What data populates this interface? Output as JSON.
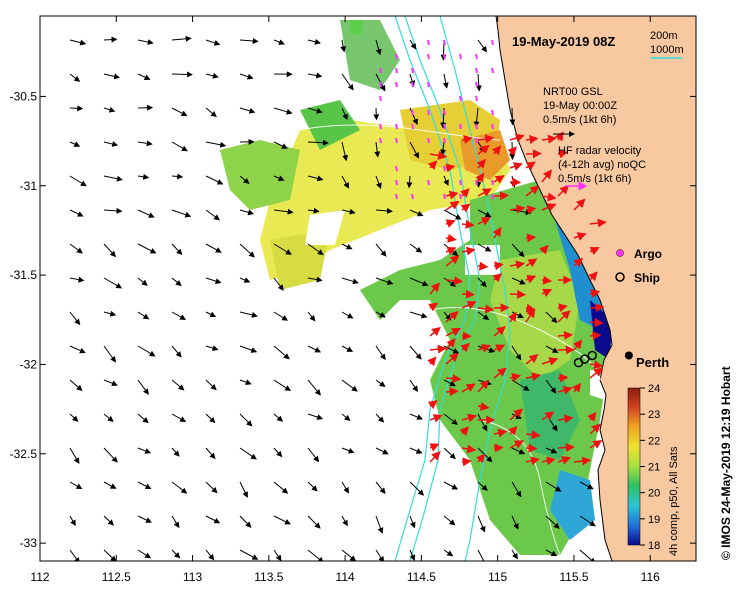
{
  "title": "19-May-2019 08Z",
  "scale_bar": {
    "label_small": "200m",
    "label_large": "1000m"
  },
  "model_label": [
    "NRT00 GSL",
    "19-May 00:00Z",
    "0.5m/s (1kt 6h)"
  ],
  "hf_label": [
    "HF radar velocity",
    "(4-12h avg) noQC",
    "0.5m/s (1kt 6h)"
  ],
  "legend": {
    "argo": "Argo",
    "ship": "Ship"
  },
  "city": {
    "name": "Perth",
    "lon": 115.86,
    "lat": -31.95
  },
  "colorbar": {
    "ticks": [
      "24",
      "23",
      "22",
      "21",
      "20",
      "19",
      "18"
    ],
    "caption": "4h comp, p50, All Sats"
  },
  "credit": "© IMOS 24-May-2019 12:19 Hobart",
  "axes": {
    "x_ticks": [
      "112",
      "112.5",
      "113",
      "113.5",
      "114",
      "114.5",
      "115",
      "115.5",
      "116"
    ],
    "y_ticks": [
      "-30.5",
      "-31",
      "-31.5",
      "-32",
      "-32.5",
      "-33"
    ],
    "x_range": [
      112,
      116.3
    ],
    "y_range": [
      -33.1,
      -30.05
    ]
  },
  "colors": {
    "land": "#f8c8a0",
    "isobath": "#33dddd",
    "argo": "#ff33ff",
    "hf_vectors": "#ee1111",
    "model_vectors": "#000000",
    "colormap": [
      "#0a0a8c",
      "#1f6ed8",
      "#2ec4d6",
      "#30c060",
      "#a6e040",
      "#f0e030",
      "#f0a020",
      "#d04020",
      "#8c1e10"
    ]
  },
  "ship_positions": [
    {
      "lon": 115.53,
      "lat": -31.99
    },
    {
      "lon": 115.57,
      "lat": -31.97
    },
    {
      "lon": 115.62,
      "lat": -31.95
    }
  ],
  "city_marker": {
    "lon": 115.86,
    "lat": -31.95
  }
}
